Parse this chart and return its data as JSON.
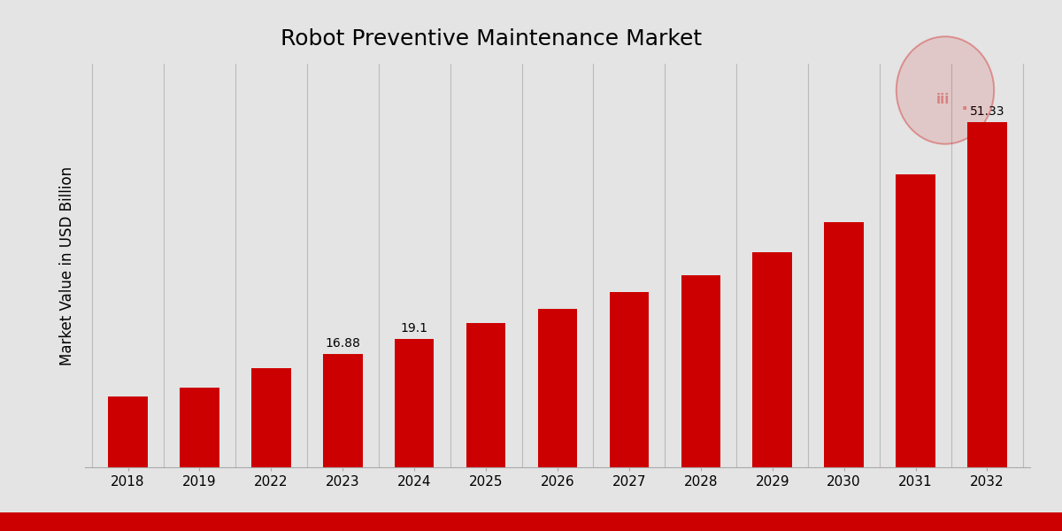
{
  "title": "Robot Preventive Maintenance Market",
  "ylabel": "Market Value in USD Billion",
  "categories": [
    "2018",
    "2019",
    "2022",
    "2023",
    "2024",
    "2025",
    "2026",
    "2027",
    "2028",
    "2029",
    "2030",
    "2031",
    "2032"
  ],
  "values": [
    10.5,
    11.8,
    14.8,
    16.88,
    19.1,
    21.5,
    23.5,
    26.0,
    28.5,
    32.0,
    36.5,
    43.5,
    51.33
  ],
  "bar_color": "#CC0000",
  "labeled_bars": {
    "2023": "16.88",
    "2024": "19.1",
    "2032": "51.33"
  },
  "background_color_light": "#DEDEDE",
  "background_color_mid": "#E4E4E4",
  "ylim": [
    0,
    60
  ],
  "title_fontsize": 18,
  "label_fontsize": 10,
  "tick_fontsize": 11,
  "ylabel_fontsize": 12,
  "bar_width": 0.55,
  "bottom_bar_color": "#CC0000",
  "grid_color": "#BBBBBB",
  "spine_color": "#AAAAAA"
}
